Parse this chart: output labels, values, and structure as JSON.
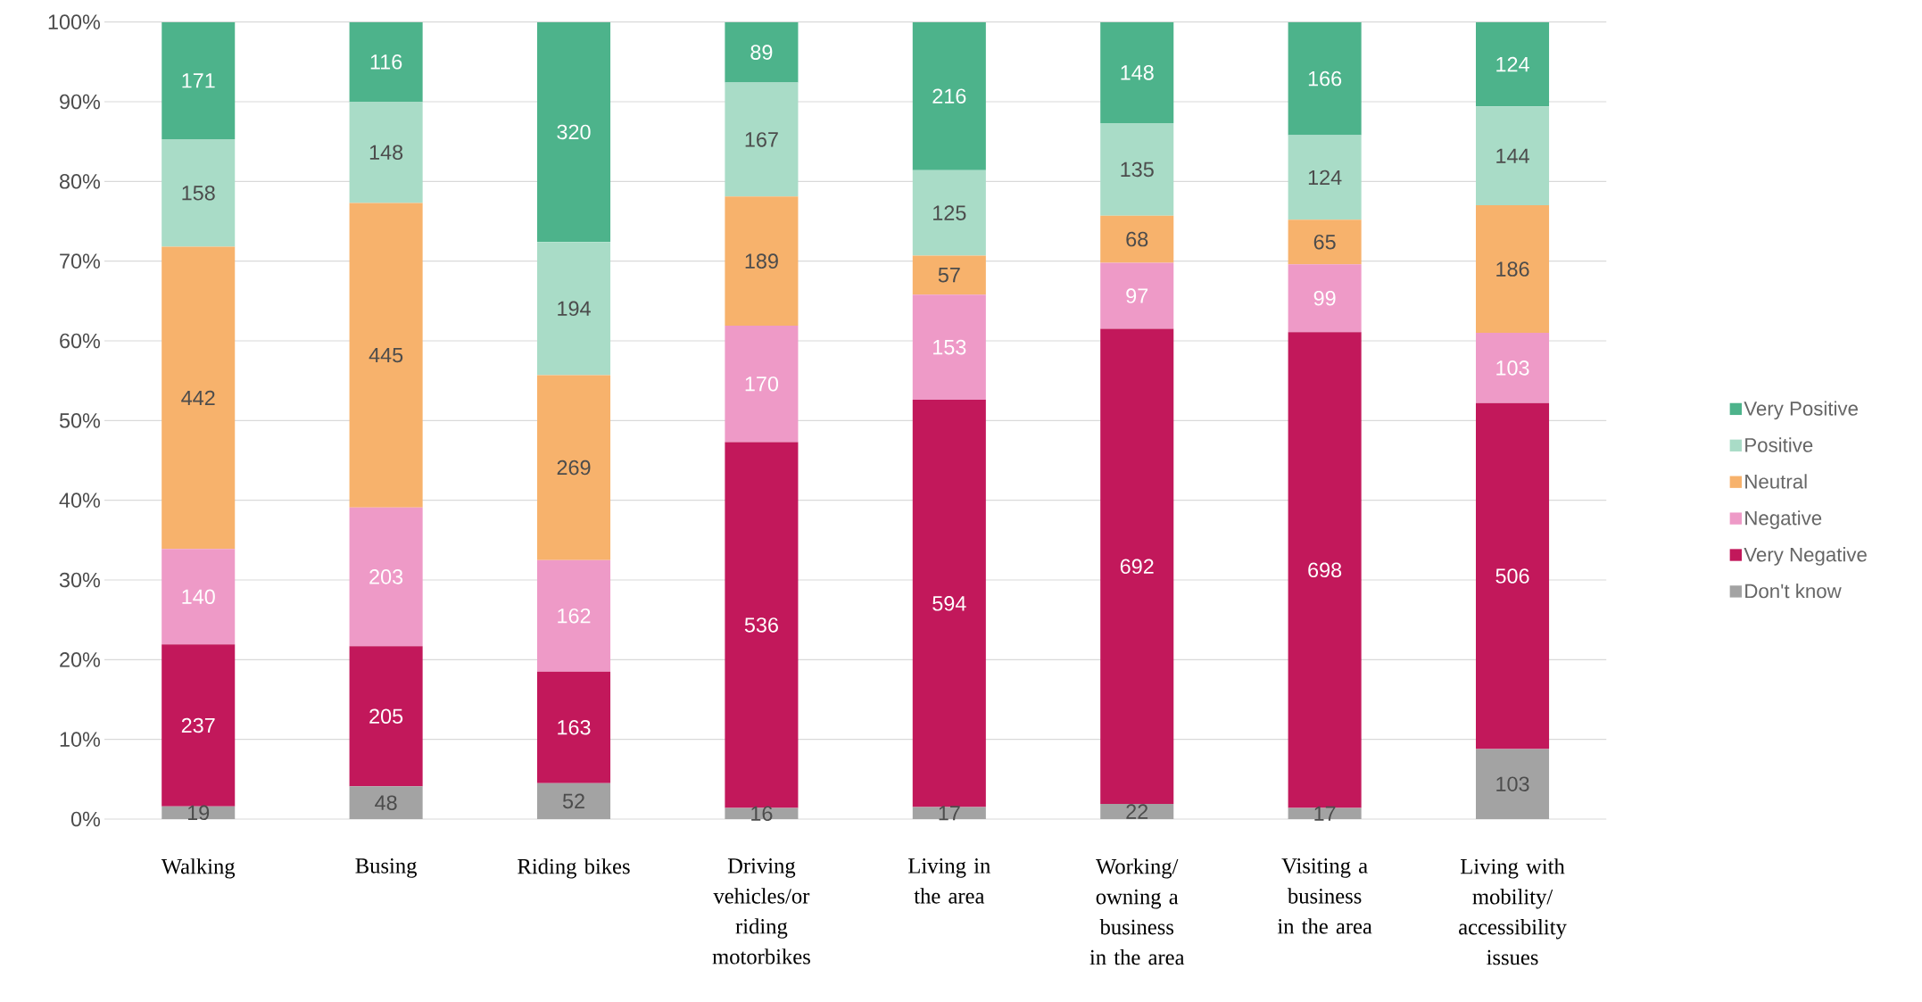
{
  "chart_data": {
    "type": "bar",
    "stacked": true,
    "categories": [
      "Walking",
      "Busing",
      "Riding bikes",
      "Driving vehicles/or riding motorbikes",
      "Living in the area",
      "Working/ owning a business in the area",
      "Visiting a business in the area",
      "Living with mobility/ accessibility issues"
    ],
    "series": [
      {
        "name": "Don't know",
        "color": "#a3a3a3",
        "values": [
          1.6,
          4.1,
          4.5,
          1.4,
          1.5,
          1.9,
          1.4,
          8.8
        ]
      },
      {
        "name": "Very Negative",
        "color": "#c2185b",
        "values": [
          20.3,
          17.6,
          14.0,
          45.9,
          51.1,
          59.6,
          59.7,
          43.4
        ]
      },
      {
        "name": "Negative",
        "color": "#ee9ac7",
        "values": [
          12.0,
          17.4,
          14.0,
          14.6,
          13.2,
          8.3,
          8.5,
          8.8
        ]
      },
      {
        "name": "Neutral",
        "color": "#f7b26c",
        "values": [
          37.9,
          38.2,
          23.2,
          16.2,
          4.9,
          5.9,
          5.6,
          16.0
        ]
      },
      {
        "name": "Positive",
        "color": "#a9dcc7",
        "values": [
          13.5,
          12.7,
          16.7,
          14.3,
          10.7,
          11.6,
          10.6,
          12.4
        ]
      },
      {
        "name": "Very Positive",
        "color": "#4db38b",
        "values": [
          14.7,
          10.0,
          27.6,
          7.6,
          18.6,
          12.7,
          14.2,
          10.6
        ]
      }
    ],
    "annotations": [
      "19",
      "48",
      "52",
      "16",
      "17",
      "22",
      "17",
      "103",
      "237",
      "205",
      "163",
      "536",
      "594",
      "692",
      "698",
      "506",
      "140",
      "203",
      "162",
      "170",
      "153",
      "97",
      "99",
      "103",
      "442",
      "445",
      "269",
      "189",
      "57",
      "68",
      "65",
      "186",
      "158",
      "148",
      "194",
      "167",
      "125",
      "135",
      "124",
      "144",
      "171",
      "116",
      "320",
      "89",
      "216",
      "148",
      "166",
      "124"
    ],
    "ylim": [
      0,
      100
    ],
    "yticks": [
      {
        "value": 0,
        "label": "0%"
      },
      {
        "value": 10,
        "label": "10%"
      },
      {
        "value": 20,
        "label": "20%"
      },
      {
        "value": 30,
        "label": "30%"
      },
      {
        "value": 40,
        "label": "40%"
      },
      {
        "value": 50,
        "label": "50%"
      },
      {
        "value": 60,
        "label": "60%"
      },
      {
        "value": 70,
        "label": "70%"
      },
      {
        "value": 80,
        "label": "80%"
      },
      {
        "value": 90,
        "label": "90%"
      },
      {
        "value": 100,
        "label": "100%"
      }
    ],
    "grid": "y",
    "legend": "right"
  }
}
